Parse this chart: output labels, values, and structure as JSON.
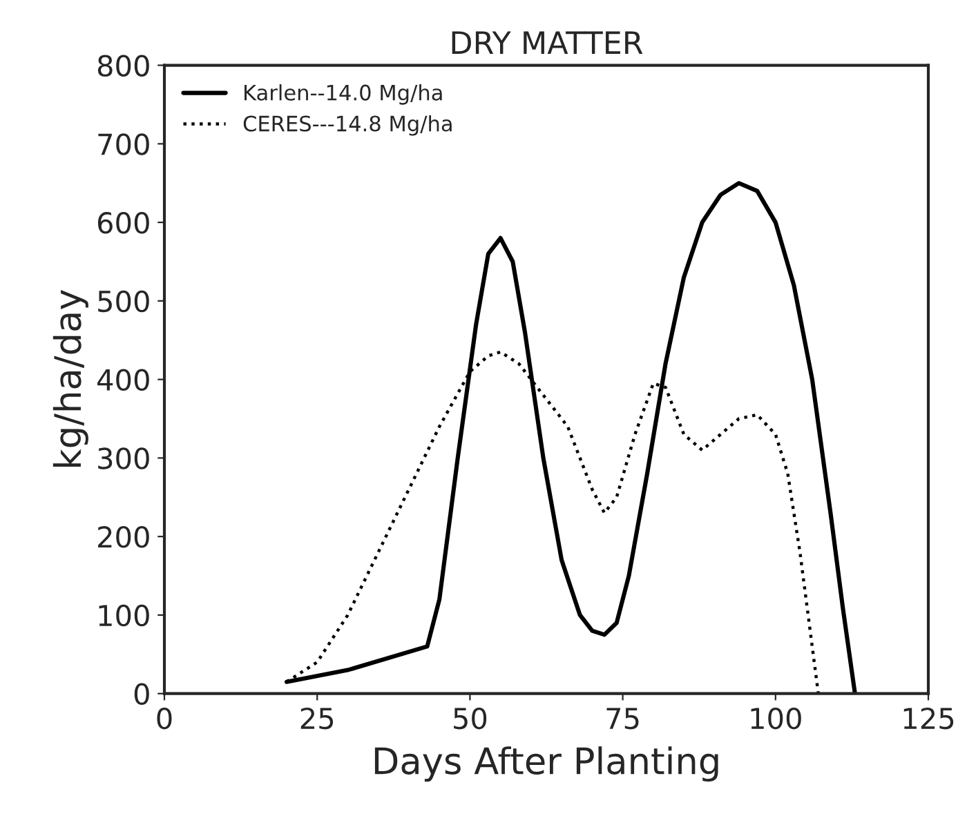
{
  "chart_data": {
    "type": "line",
    "title": "DRY MATTER",
    "xlabel": "Days After Planting",
    "ylabel": "kg/ha/day",
    "xlim": [
      0,
      125
    ],
    "xticks": [
      0,
      25,
      50,
      75,
      100,
      125
    ],
    "ylim": [
      0,
      800
    ],
    "yticks": [
      0,
      100,
      200,
      300,
      400,
      500,
      600,
      700,
      800
    ],
    "grid": false,
    "legend": "top left",
    "series": [
      {
        "name": "Karlen--14.0 Mg/ha",
        "color": "#000000",
        "line_style": "solid",
        "x": [
          20,
          30,
          43,
          45,
          48,
          51,
          53,
          55,
          57,
          59,
          62,
          65,
          68,
          70,
          72,
          74,
          76,
          79,
          82,
          85,
          88,
          91,
          94,
          97,
          100,
          103,
          106,
          109,
          111,
          113
        ],
        "values": [
          15,
          30,
          60,
          120,
          300,
          470,
          560,
          580,
          550,
          460,
          300,
          170,
          100,
          80,
          75,
          90,
          150,
          280,
          420,
          530,
          600,
          635,
          650,
          640,
          600,
          520,
          400,
          230,
          110,
          0
        ]
      },
      {
        "name": "CERES---14.8 Mg/ha",
        "color": "#000000",
        "line_style": "dotted",
        "x": [
          20,
          25,
          30,
          35,
          40,
          45,
          50,
          53,
          55,
          58,
          62,
          66,
          70,
          72,
          74,
          77,
          80,
          82,
          85,
          88,
          91,
          94,
          97,
          100,
          102,
          104,
          106,
          107
        ],
        "values": [
          15,
          40,
          100,
          180,
          260,
          340,
          410,
          430,
          435,
          420,
          380,
          340,
          260,
          230,
          250,
          330,
          395,
          390,
          330,
          310,
          330,
          350,
          355,
          330,
          280,
          180,
          60,
          0
        ]
      }
    ]
  }
}
